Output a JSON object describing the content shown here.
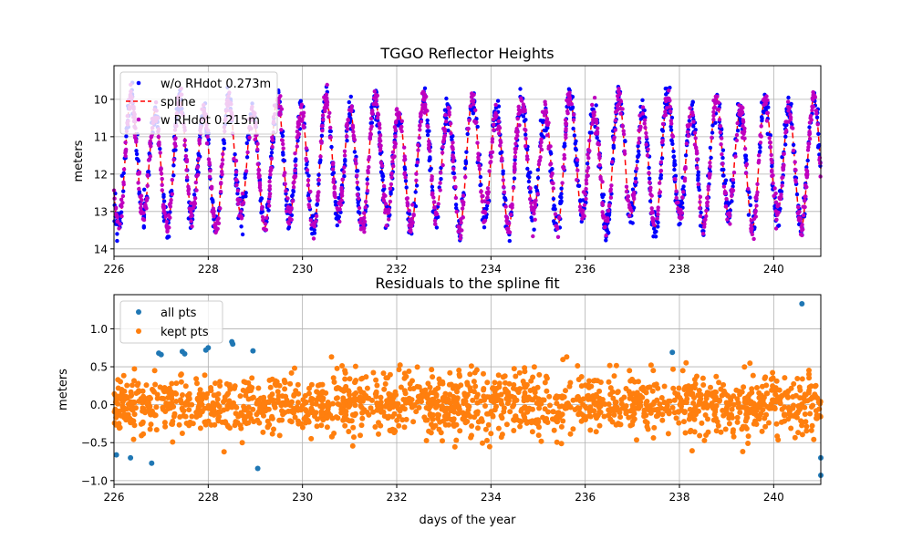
{
  "colors": {
    "wo_rhdot": "#0000ff",
    "w_rhdot": "#bf00bf",
    "spline": "#ff0000",
    "all_pts": "#1f77b4",
    "kept_pts": "#ff7f0e",
    "grid": "#b0b0b0"
  },
  "chart_data": [
    {
      "type": "scatter",
      "title": "TGGO Reflector Heights",
      "xlabel": "",
      "ylabel": "meters",
      "xlim": [
        226,
        241
      ],
      "ylim": [
        14.2,
        9.1
      ],
      "y_inverted": true,
      "grid": true,
      "legend_placement": "upper-left",
      "x_ticks": [
        "226",
        "228",
        "230",
        "232",
        "234",
        "236",
        "238",
        "240"
      ],
      "y_ticks": [
        "10",
        "11",
        "12",
        "13",
        "14"
      ],
      "tide_model": {
        "mean": 11.7,
        "amplitude": 1.55,
        "period_days": 0.5175,
        "phase_day": 226.1,
        "secondary_amplitude": 0.25
      },
      "series": [
        {
          "name": "w/o RHdot 0.273m",
          "marker": "point",
          "color_key": "wo_rhdot"
        },
        {
          "name": "spline",
          "line": "dashed",
          "color_key": "spline"
        },
        {
          "name": "w RHdot 0.215m",
          "marker": "point",
          "color_key": "w_rhdot"
        }
      ]
    },
    {
      "type": "scatter",
      "title": "Residuals to the spline fit",
      "xlabel": "days of the year",
      "ylabel": "meters",
      "xlim": [
        226,
        241
      ],
      "ylim": [
        -1.05,
        1.45
      ],
      "grid": true,
      "legend_placement": "upper-left",
      "x_ticks": [
        "226",
        "228",
        "230",
        "232",
        "234",
        "236",
        "238",
        "240"
      ],
      "y_ticks": [
        "−1.0",
        "−0.5",
        "0.0",
        "0.5",
        "1.0"
      ],
      "kept_std_meters": 0.2,
      "outliers": [
        {
          "x": 226.05,
          "y": -0.66
        },
        {
          "x": 226.35,
          "y": -0.7
        },
        {
          "x": 226.8,
          "y": -0.77
        },
        {
          "x": 226.95,
          "y": 0.68
        },
        {
          "x": 227.0,
          "y": 0.66
        },
        {
          "x": 227.45,
          "y": 0.7
        },
        {
          "x": 227.5,
          "y": 0.67
        },
        {
          "x": 227.95,
          "y": 0.72
        },
        {
          "x": 228.0,
          "y": 0.75
        },
        {
          "x": 228.5,
          "y": 0.83
        },
        {
          "x": 228.52,
          "y": 0.8
        },
        {
          "x": 228.95,
          "y": 0.71
        },
        {
          "x": 229.05,
          "y": -0.84
        },
        {
          "x": 237.85,
          "y": 0.69
        },
        {
          "x": 240.6,
          "y": 1.33
        },
        {
          "x": 241.0,
          "y": -0.93
        },
        {
          "x": 241.0,
          "y": -0.7
        }
      ],
      "series": [
        {
          "name": "all pts",
          "marker": "circle",
          "color_key": "all_pts"
        },
        {
          "name": "kept pts",
          "marker": "circle",
          "color_key": "kept_pts"
        }
      ]
    }
  ]
}
